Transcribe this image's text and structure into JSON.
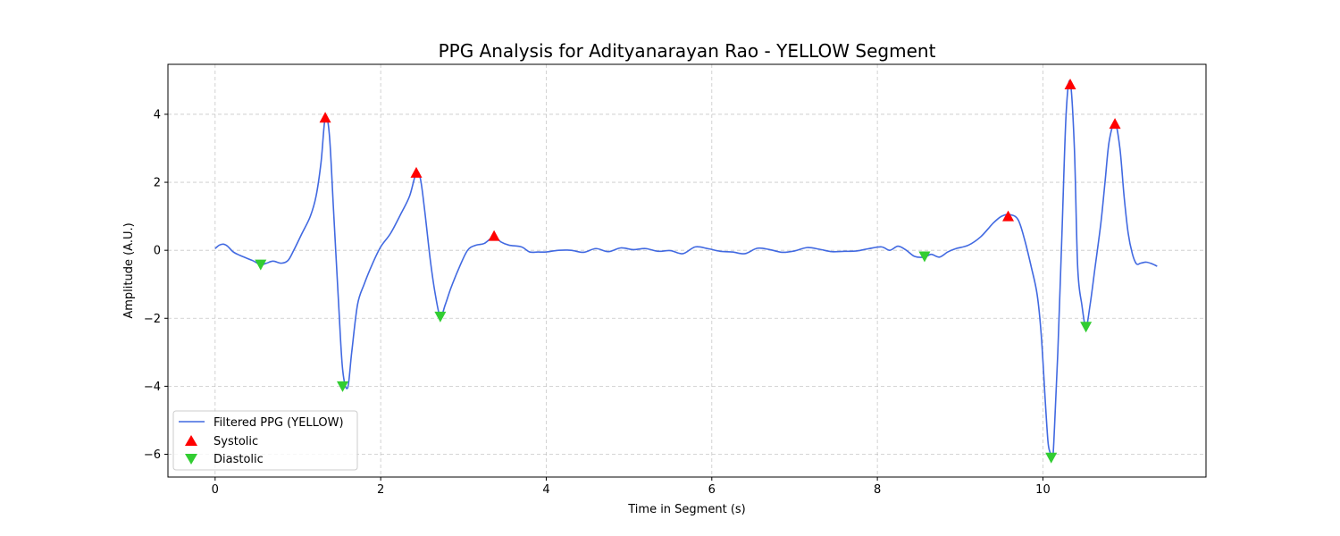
{
  "chart_data": {
    "type": "line",
    "title": "PPG Analysis for Adityanarayan Rao - YELLOW Segment",
    "xlabel": "Time in Segment (s)",
    "ylabel": "Amplitude (A.U.)",
    "xlim": [
      -0.57,
      11.97
    ],
    "ylim": [
      -6.67,
      5.47
    ],
    "xticks": [
      0,
      2,
      4,
      6,
      8,
      10
    ],
    "yticks": [
      -6,
      -4,
      -2,
      0,
      2,
      4
    ],
    "grid": true,
    "legend_position": "lower-left",
    "colors": {
      "line": "#4169e1",
      "systolic": "#ff0000",
      "diastolic": "#32cd32"
    },
    "series": [
      {
        "name": "Filtered PPG (YELLOW)",
        "type": "line",
        "x": [
          0,
          0.05,
          0.1,
          0.15,
          0.22,
          0.3,
          0.45,
          0.55,
          0.62,
          0.7,
          0.8,
          0.88,
          0.95,
          1.05,
          1.15,
          1.22,
          1.28,
          1.33,
          1.38,
          1.43,
          1.49,
          1.54,
          1.6,
          1.65,
          1.72,
          1.8,
          1.9,
          2.0,
          2.12,
          2.25,
          2.35,
          2.43,
          2.48,
          2.53,
          2.6,
          2.66,
          2.72,
          2.78,
          2.85,
          2.95,
          3.05,
          3.15,
          3.25,
          3.37,
          3.45,
          3.55,
          3.7,
          3.8,
          3.9,
          4.0,
          4.15,
          4.3,
          4.45,
          4.6,
          4.75,
          4.9,
          5.05,
          5.2,
          5.35,
          5.5,
          5.65,
          5.8,
          5.95,
          6.1,
          6.25,
          6.4,
          6.55,
          6.7,
          6.85,
          7.0,
          7.15,
          7.3,
          7.45,
          7.6,
          7.75,
          7.9,
          8.05,
          8.15,
          8.25,
          8.35,
          8.45,
          8.57,
          8.65,
          8.75,
          8.85,
          8.95,
          9.1,
          9.25,
          9.4,
          9.5,
          9.6,
          9.7,
          9.78,
          9.86,
          9.93,
          9.98,
          10.03,
          10.06,
          10.08,
          10.1,
          10.12,
          10.14,
          10.18,
          10.23,
          10.28,
          10.33,
          10.38,
          10.42,
          10.47,
          10.52,
          10.57,
          10.63,
          10.7,
          10.75,
          10.8,
          10.87,
          10.93,
          10.98,
          11.03,
          11.08,
          11.13,
          11.18,
          11.25,
          11.32,
          11.38
        ],
        "y": [
          0.05,
          0.15,
          0.18,
          0.12,
          -0.05,
          -0.15,
          -0.3,
          -0.42,
          -0.38,
          -0.32,
          -0.38,
          -0.3,
          0.0,
          0.5,
          1.0,
          1.6,
          2.6,
          3.9,
          3.4,
          1.2,
          -1.5,
          -3.5,
          -4.05,
          -3.0,
          -1.6,
          -1.0,
          -0.4,
          0.1,
          0.5,
          1.1,
          1.6,
          2.28,
          2.1,
          1.2,
          -0.3,
          -1.3,
          -1.95,
          -1.6,
          -1.1,
          -0.5,
          0.0,
          0.15,
          0.2,
          0.4,
          0.25,
          0.15,
          0.1,
          -0.05,
          -0.05,
          -0.05,
          0.0,
          0.0,
          -0.06,
          0.05,
          -0.04,
          0.07,
          0.02,
          0.05,
          -0.03,
          -0.01,
          -0.1,
          0.1,
          0.05,
          -0.03,
          -0.05,
          -0.1,
          0.06,
          0.02,
          -0.06,
          -0.02,
          0.08,
          0.03,
          -0.04,
          -0.03,
          -0.02,
          0.05,
          0.1,
          0.0,
          0.12,
          0.0,
          -0.18,
          -0.2,
          -0.12,
          -0.2,
          -0.05,
          0.05,
          0.15,
          0.4,
          0.8,
          1.0,
          1.05,
          0.9,
          0.3,
          -0.5,
          -1.3,
          -2.5,
          -4.5,
          -5.6,
          -5.9,
          -6.0,
          -6.1,
          -5.2,
          -3.0,
          0.5,
          4.0,
          4.95,
          3.0,
          -0.5,
          -1.6,
          -2.25,
          -1.6,
          -0.5,
          0.8,
          2.0,
          3.2,
          3.75,
          3.0,
          1.6,
          0.5,
          -0.1,
          -0.4,
          -0.38,
          -0.35,
          -0.4,
          -0.47
        ]
      },
      {
        "name": "Systolic",
        "type": "scatter",
        "marker": "triangle-up",
        "x": [
          1.33,
          2.43,
          3.37,
          9.58,
          10.33,
          10.87
        ],
        "y": [
          3.9,
          2.28,
          0.42,
          1.0,
          4.88,
          3.72
        ]
      },
      {
        "name": "Diastolic",
        "type": "scatter",
        "marker": "triangle-down",
        "x": [
          0.55,
          1.54,
          2.72,
          8.57,
          10.1,
          10.52
        ],
        "y": [
          -0.42,
          -4.0,
          -1.95,
          -0.18,
          -6.1,
          -2.25
        ]
      }
    ]
  }
}
